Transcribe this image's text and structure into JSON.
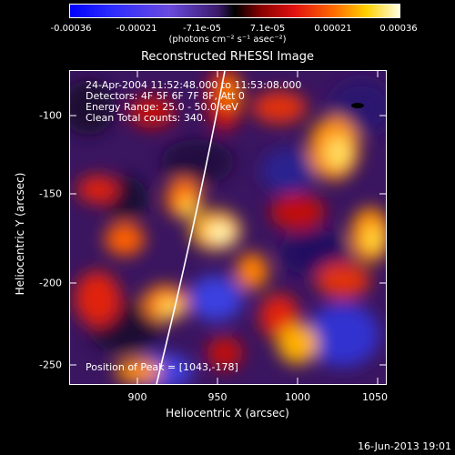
{
  "colorbar": {
    "ticks": [
      "-0.00036",
      "-0.00021",
      "-7.1e-05",
      "7.1e-05",
      "0.00021",
      "0.00036"
    ],
    "unit_label": "(photons cm⁻² s⁻¹ asec⁻²)"
  },
  "title": "Reconstructed RHESSI Image",
  "annotations": {
    "time": "24-Apr-2004 11:52:48.000 to 11:53:08.000",
    "detectors": "Detectors: 4F 5F 6F 7F 8F, Att 0",
    "energy": "Energy Range: 25.0 - 50.0 keV",
    "clean": "Clean     Total counts: 340.",
    "peak": "Position of Peak = [1043,-178]"
  },
  "axes": {
    "xlabel": "Heliocentric X (arcsec)",
    "ylabel": "Heliocentric Y (arcsec)",
    "xticks": [
      "900",
      "950",
      "1000",
      "1050"
    ],
    "yticks": [
      "-100",
      "-150",
      "-200",
      "-250"
    ]
  },
  "footer": "16-Jun-2013 19:01",
  "colors": {
    "background": "#000000",
    "limb_line": "#ffffff"
  }
}
